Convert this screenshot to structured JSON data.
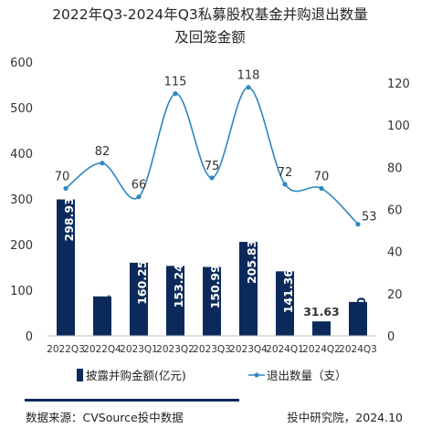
{
  "chart_data": {
    "type": "bar+line",
    "title_line1": "2022年Q3-2024年Q3私募股权基金并购退出数量",
    "title_line2": "及回笼金额",
    "categories": [
      "2022Q3",
      "2022Q4",
      "2023Q1",
      "2023Q2",
      "2023Q3",
      "2023Q4",
      "2024Q1",
      "2024Q2",
      "2024Q3"
    ],
    "bar_series": {
      "name": "披露并购金额(亿元)",
      "values": [
        298.93,
        86.41,
        160.25,
        153.24,
        150.99,
        205.83,
        141.36,
        31.63,
        74.3
      ],
      "labels": [
        "298.93",
        "86.41",
        "160.25",
        "153.24",
        "150.99",
        "205.83",
        "141.36",
        "31.63",
        "74.30"
      ],
      "axis": "left",
      "color": "#0b2a5b"
    },
    "line_series": {
      "name": "退出数量（支）",
      "values": [
        70,
        82,
        66,
        115,
        75,
        118,
        72,
        70,
        53
      ],
      "axis": "right",
      "color": "#2e86c1",
      "smooth": true
    },
    "y_left": {
      "min": 0,
      "max": 600,
      "ticks": [
        "0",
        "100",
        "200",
        "300",
        "400",
        "500",
        "600"
      ]
    },
    "y_right": {
      "min": 0,
      "max": 130,
      "ticks": [
        "0",
        "20",
        "40",
        "60",
        "80",
        "100",
        "120"
      ]
    },
    "gridlines": false,
    "legend_position": "bottom"
  },
  "footer": {
    "source": "数据来源：CVSource投中数据",
    "publisher": "投中研究院，2024.10",
    "accent_color": "#0b2a5b"
  }
}
